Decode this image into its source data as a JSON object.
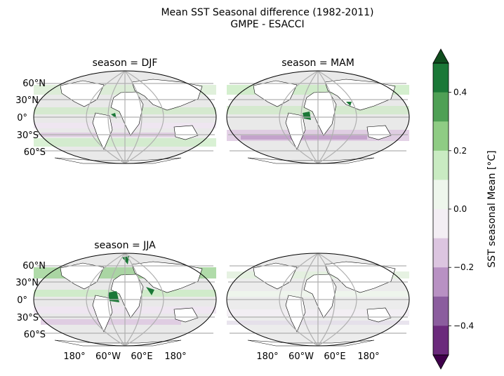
{
  "figure": {
    "title_line1": "Mean SST Seasonal difference (1982-2011)",
    "title_line2": "GMPE - ESACCI"
  },
  "panels": [
    {
      "title": "season = DJF",
      "show_lat_labels": true,
      "show_lon_labels": false
    },
    {
      "title": "season = MAM",
      "show_lat_labels": false,
      "show_lon_labels": false
    },
    {
      "title": "season = JJA",
      "show_lat_labels": true,
      "show_lon_labels": true
    },
    {
      "title": "",
      "show_lat_labels": false,
      "show_lon_labels": true
    }
  ],
  "lat_labels": [
    "60°N",
    "30°N",
    "0°",
    "30°S",
    "60°S"
  ],
  "lon_labels": [
    "180°",
    "60°W",
    "60°E",
    "180°"
  ],
  "colorbar": {
    "label": "SST seasonal Mean [°C]",
    "ticks": [
      "0.4",
      "0.2",
      "0.0",
      "−0.2",
      "−0.4"
    ],
    "tick_values": [
      0.4,
      0.2,
      0.0,
      -0.2,
      -0.4
    ],
    "range": [
      -0.5,
      0.5
    ],
    "extend": "both",
    "colors_top_to_bottom": [
      "#1b7837",
      "#4fa055",
      "#8fcc84",
      "#c9ebc2",
      "#eef6ec",
      "#f3eef4",
      "#dcc5e0",
      "#b891c3",
      "#8b5d9e",
      "#6b2a7c"
    ],
    "over_color": "#0f4d1e",
    "under_color": "#40004b"
  }
}
